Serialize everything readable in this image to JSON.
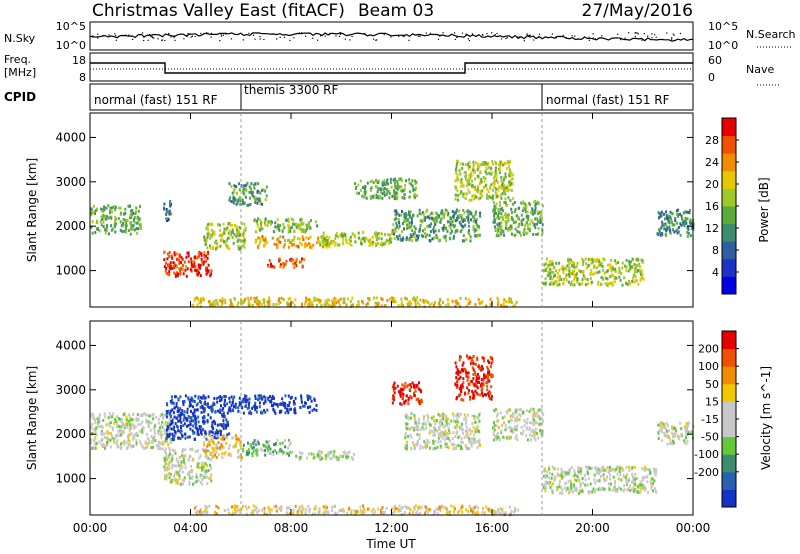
{
  "header": {
    "station": "Christmas Valley East (fitACF)",
    "beam": "Beam 03",
    "date": "27/May/2016"
  },
  "panels": {
    "nsky": {
      "left_label": "N.Sky",
      "right_label": "N.Search",
      "left_ticks": [
        "10^5",
        "10^0"
      ],
      "right_ticks": [
        "10^5",
        "10^0"
      ]
    },
    "freq": {
      "left_label_1": "Freq.",
      "left_label_2": "[MHz]",
      "right_label": "Nave",
      "left_ticks": [
        "18",
        "8"
      ],
      "right_ticks": [
        "60",
        "0"
      ]
    },
    "cpid": {
      "label": "CPID",
      "segments": [
        {
          "start_hour": 0,
          "end_hour": 6,
          "label": "normal (fast) 151 RF"
        },
        {
          "start_hour": 6,
          "end_hour": 18,
          "label": "themis 3300 RF"
        },
        {
          "start_hour": 18,
          "end_hour": 24,
          "label": "normal (fast) 151 RF"
        }
      ]
    }
  },
  "colors": {
    "power_scale": [
      "#0000e6",
      "#1e32c8",
      "#2f5fa0",
      "#3c8c6e",
      "#5aaa3c",
      "#a0c828",
      "#e6c800",
      "#f08c00",
      "#f05000",
      "#e60000"
    ],
    "velocity_scale": [
      "#1432c8",
      "#2860b0",
      "#3c8c6e",
      "#64c83c",
      "#c8c8c8",
      "#c8c8c8",
      "#f0c800",
      "#f08c00",
      "#f05000",
      "#e60000"
    ]
  },
  "chart_data": [
    {
      "type": "heatmap",
      "name_panel": "power",
      "xlabel": "Time UT",
      "ylabel": "Slant Range [km]",
      "colorbar_label": "Power [dB]",
      "colorbar_ticks": [
        "4",
        "8",
        "12",
        "16",
        "20",
        "24",
        "28"
      ],
      "x_ticks": [
        "00:00",
        "04:00",
        "08:00",
        "12:00",
        "16:00",
        "20:00",
        "00:00"
      ],
      "y_ticks": [
        "1000",
        "2000",
        "3000",
        "4000"
      ],
      "xlim_hours": [
        0,
        24
      ],
      "ylim_km": [
        180,
        4550
      ],
      "blobs": [
        {
          "t": [
            0.0,
            2.0
          ],
          "r": [
            1850,
            2500
          ],
          "level": 0.45
        },
        {
          "t": [
            2.9,
            3.2
          ],
          "r": [
            2100,
            2600
          ],
          "level": 0.3
        },
        {
          "t": [
            2.9,
            4.8
          ],
          "r": [
            900,
            1450
          ],
          "level": 0.92
        },
        {
          "t": [
            4.5,
            6.2
          ],
          "r": [
            1500,
            2100
          ],
          "level": 0.55
        },
        {
          "t": [
            5.5,
            7.0
          ],
          "r": [
            2500,
            3000
          ],
          "level": 0.4
        },
        {
          "t": [
            6.5,
            9.6
          ],
          "r": [
            1550,
            1800
          ],
          "level": 0.7
        },
        {
          "t": [
            6.5,
            9.0
          ],
          "r": [
            1900,
            2200
          ],
          "level": 0.5
        },
        {
          "t": [
            7.0,
            8.5
          ],
          "r": [
            1100,
            1300
          ],
          "level": 0.85
        },
        {
          "t": [
            9.0,
            12.0
          ],
          "r": [
            1600,
            1900
          ],
          "level": 0.55
        },
        {
          "t": [
            10.5,
            13.0
          ],
          "r": [
            2650,
            3100
          ],
          "level": 0.45
        },
        {
          "t": [
            12.0,
            15.5
          ],
          "r": [
            1700,
            2400
          ],
          "level": 0.4
        },
        {
          "t": [
            14.5,
            16.8
          ],
          "r": [
            2600,
            3500
          ],
          "level": 0.55
        },
        {
          "t": [
            16.0,
            18.0
          ],
          "r": [
            1800,
            2600
          ],
          "level": 0.45
        },
        {
          "t": [
            18.0,
            22.0
          ],
          "r": [
            700,
            1300
          ],
          "level": 0.55
        },
        {
          "t": [
            22.5,
            24.0
          ],
          "r": [
            1800,
            2400
          ],
          "level": 0.35
        },
        {
          "t": [
            4.0,
            17.0
          ],
          "r": [
            220,
            420
          ],
          "level": 0.65
        }
      ]
    },
    {
      "type": "heatmap",
      "name_panel": "velocity",
      "xlabel": "Time UT",
      "ylabel": "Slant Range [km]",
      "colorbar_label": "Velocity [m s^-1]",
      "colorbar_ticks": [
        "200",
        "100",
        "50",
        "15",
        "-15",
        "-50",
        "-100",
        "-200"
      ],
      "x_ticks": [
        "00:00",
        "04:00",
        "08:00",
        "12:00",
        "16:00",
        "20:00",
        "00:00"
      ],
      "y_ticks": [
        "1000",
        "2000",
        "3000",
        "4000"
      ],
      "xlim_hours": [
        0,
        24
      ],
      "ylim_km": [
        180,
        4550
      ],
      "blobs": [
        {
          "t": [
            0.0,
            3.2
          ],
          "r": [
            1700,
            2500
          ],
          "level": 0.48
        },
        {
          "t": [
            2.9,
            4.8
          ],
          "r": [
            900,
            1700
          ],
          "level": 0.48
        },
        {
          "t": [
            3.0,
            5.5
          ],
          "r": [
            1900,
            2900
          ],
          "level": 0.05
        },
        {
          "t": [
            5.5,
            9.0
          ],
          "r": [
            2500,
            2900
          ],
          "level": 0.02
        },
        {
          "t": [
            6.0,
            8.0
          ],
          "r": [
            1550,
            1900
          ],
          "level": 0.35
        },
        {
          "t": [
            4.5,
            6.0
          ],
          "r": [
            1500,
            2000
          ],
          "level": 0.62
        },
        {
          "t": [
            8.0,
            10.5
          ],
          "r": [
            1450,
            1650
          ],
          "level": 0.48
        },
        {
          "t": [
            12.0,
            13.2
          ],
          "r": [
            2700,
            3200
          ],
          "level": 0.98
        },
        {
          "t": [
            14.5,
            16.0
          ],
          "r": [
            2800,
            3800
          ],
          "level": 0.95
        },
        {
          "t": [
            12.5,
            15.5
          ],
          "r": [
            1700,
            2500
          ],
          "level": 0.48
        },
        {
          "t": [
            16.0,
            18.0
          ],
          "r": [
            1900,
            2600
          ],
          "level": 0.48
        },
        {
          "t": [
            18.0,
            22.5
          ],
          "r": [
            700,
            1300
          ],
          "level": 0.48
        },
        {
          "t": [
            22.5,
            24.0
          ],
          "r": [
            1800,
            2300
          ],
          "level": 0.48
        },
        {
          "t": [
            4.0,
            17.0
          ],
          "r": [
            220,
            420
          ],
          "level": 0.6
        }
      ]
    }
  ]
}
